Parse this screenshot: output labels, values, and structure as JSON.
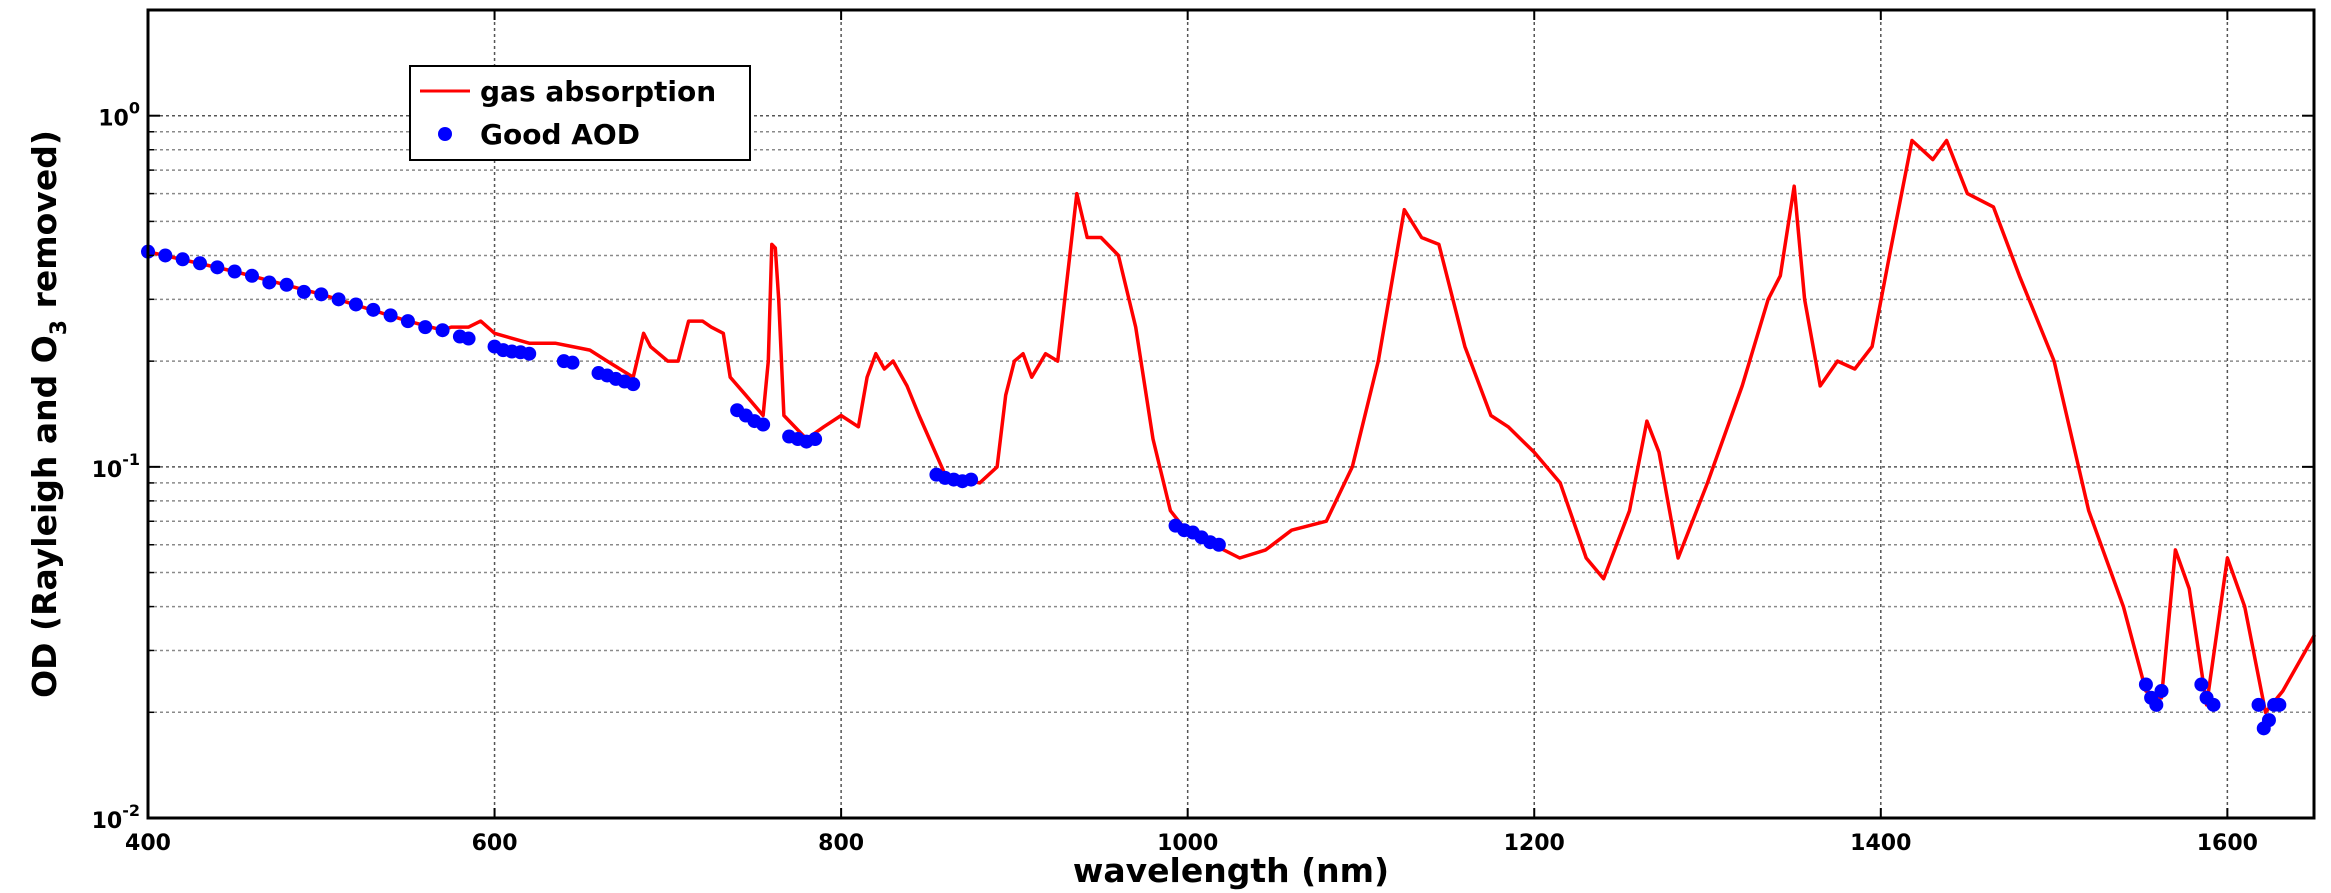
{
  "chart_data": {
    "type": "line",
    "title": "",
    "xlabel": "wavelength (nm)",
    "ylabel_parts": [
      "OD (Rayleigh and O",
      "3",
      " removed)"
    ],
    "xlim": [
      400,
      1650
    ],
    "ylim": [
      0.01,
      2
    ],
    "y_scale": "log",
    "grid": "y-major-and-minor dotted",
    "x_ticks": [
      400,
      600,
      800,
      1000,
      1200,
      1400,
      1600
    ],
    "x_tick_labels": [
      "400",
      "600",
      "800",
      "1000",
      "1200",
      "1400",
      "1600"
    ],
    "y_ticks": [
      {
        "value": 0.01,
        "base": "10",
        "exp": "-2"
      },
      {
        "value": 0.1,
        "base": "10",
        "exp": "-1"
      },
      {
        "value": 1,
        "base": "10",
        "exp": "0"
      }
    ],
    "legend": {
      "placement": "top-left",
      "entries": [
        {
          "label": "gas absorption",
          "marker": "line",
          "color": "#ff0000"
        },
        {
          "label": "Good AOD",
          "marker": "dot",
          "color": "#0000ff"
        }
      ]
    },
    "series": [
      {
        "name": "gas absorption",
        "color": "#ff0000",
        "style": "line",
        "points": [
          [
            400,
            0.41
          ],
          [
            450,
            0.36
          ],
          [
            500,
            0.31
          ],
          [
            550,
            0.26
          ],
          [
            570,
            0.245
          ],
          [
            575,
            0.25
          ],
          [
            585,
            0.25
          ],
          [
            592,
            0.26
          ],
          [
            600,
            0.24
          ],
          [
            620,
            0.225
          ],
          [
            635,
            0.225
          ],
          [
            645,
            0.22
          ],
          [
            655,
            0.215
          ],
          [
            665,
            0.2
          ],
          [
            680,
            0.18
          ],
          [
            686,
            0.24
          ],
          [
            690,
            0.22
          ],
          [
            700,
            0.2
          ],
          [
            706,
            0.2
          ],
          [
            712,
            0.26
          ],
          [
            720,
            0.26
          ],
          [
            725,
            0.25
          ],
          [
            732,
            0.24
          ],
          [
            736,
            0.18
          ],
          [
            745,
            0.16
          ],
          [
            755,
            0.14
          ],
          [
            758,
            0.2
          ],
          [
            760,
            0.43
          ],
          [
            762,
            0.42
          ],
          [
            764,
            0.3
          ],
          [
            767,
            0.14
          ],
          [
            780,
            0.12
          ],
          [
            790,
            0.13
          ],
          [
            800,
            0.14
          ],
          [
            810,
            0.13
          ],
          [
            815,
            0.18
          ],
          [
            820,
            0.21
          ],
          [
            825,
            0.19
          ],
          [
            830,
            0.2
          ],
          [
            838,
            0.17
          ],
          [
            845,
            0.14
          ],
          [
            860,
            0.095
          ],
          [
            880,
            0.09
          ],
          [
            890,
            0.1
          ],
          [
            895,
            0.16
          ],
          [
            900,
            0.2
          ],
          [
            905,
            0.21
          ],
          [
            910,
            0.18
          ],
          [
            918,
            0.21
          ],
          [
            925,
            0.2
          ],
          [
            932,
            0.4
          ],
          [
            936,
            0.6
          ],
          [
            942,
            0.45
          ],
          [
            950,
            0.45
          ],
          [
            960,
            0.4
          ],
          [
            970,
            0.25
          ],
          [
            980,
            0.12
          ],
          [
            990,
            0.075
          ],
          [
            1000,
            0.065
          ],
          [
            1015,
            0.06
          ],
          [
            1030,
            0.055
          ],
          [
            1045,
            0.058
          ],
          [
            1060,
            0.066
          ],
          [
            1080,
            0.07
          ],
          [
            1095,
            0.1
          ],
          [
            1110,
            0.2
          ],
          [
            1125,
            0.54
          ],
          [
            1135,
            0.45
          ],
          [
            1145,
            0.43
          ],
          [
            1160,
            0.22
          ],
          [
            1175,
            0.14
          ],
          [
            1185,
            0.13
          ],
          [
            1200,
            0.11
          ],
          [
            1215,
            0.09
          ],
          [
            1230,
            0.055
          ],
          [
            1240,
            0.048
          ],
          [
            1255,
            0.075
          ],
          [
            1265,
            0.135
          ],
          [
            1272,
            0.11
          ],
          [
            1283,
            0.055
          ],
          [
            1300,
            0.09
          ],
          [
            1320,
            0.17
          ],
          [
            1335,
            0.3
          ],
          [
            1342,
            0.35
          ],
          [
            1350,
            0.63
          ],
          [
            1356,
            0.3
          ],
          [
            1365,
            0.17
          ],
          [
            1375,
            0.2
          ],
          [
            1385,
            0.19
          ],
          [
            1395,
            0.22
          ],
          [
            1405,
            0.4
          ],
          [
            1418,
            0.85
          ],
          [
            1430,
            0.75
          ],
          [
            1438,
            0.85
          ],
          [
            1450,
            0.6
          ],
          [
            1465,
            0.55
          ],
          [
            1480,
            0.35
          ],
          [
            1500,
            0.2
          ],
          [
            1520,
            0.075
          ],
          [
            1540,
            0.04
          ],
          [
            1553,
            0.023
          ],
          [
            1562,
            0.022
          ],
          [
            1570,
            0.058
          ],
          [
            1578,
            0.045
          ],
          [
            1588,
            0.021
          ],
          [
            1600,
            0.055
          ],
          [
            1610,
            0.04
          ],
          [
            1622,
            0.02
          ],
          [
            1632,
            0.023
          ],
          [
            1650,
            0.033
          ]
        ]
      },
      {
        "name": "Good AOD",
        "color": "#0000ff",
        "style": "dots",
        "points": [
          [
            400,
            0.41
          ],
          [
            410,
            0.4
          ],
          [
            420,
            0.39
          ],
          [
            430,
            0.38
          ],
          [
            440,
            0.37
          ],
          [
            450,
            0.36
          ],
          [
            460,
            0.35
          ],
          [
            470,
            0.335
          ],
          [
            480,
            0.33
          ],
          [
            490,
            0.315
          ],
          [
            500,
            0.31
          ],
          [
            510,
            0.3
          ],
          [
            520,
            0.29
          ],
          [
            530,
            0.28
          ],
          [
            540,
            0.27
          ],
          [
            550,
            0.26
          ],
          [
            560,
            0.25
          ],
          [
            570,
            0.245
          ],
          [
            580,
            0.235
          ],
          [
            585,
            0.232
          ],
          [
            600,
            0.22
          ],
          [
            605,
            0.215
          ],
          [
            610,
            0.213
          ],
          [
            615,
            0.212
          ],
          [
            620,
            0.21
          ],
          [
            640,
            0.2
          ],
          [
            645,
            0.198
          ],
          [
            660,
            0.185
          ],
          [
            665,
            0.182
          ],
          [
            670,
            0.178
          ],
          [
            675,
            0.175
          ],
          [
            680,
            0.172
          ],
          [
            740,
            0.145
          ],
          [
            745,
            0.14
          ],
          [
            750,
            0.135
          ],
          [
            755,
            0.132
          ],
          [
            770,
            0.122
          ],
          [
            775,
            0.12
          ],
          [
            780,
            0.118
          ],
          [
            785,
            0.12
          ],
          [
            855,
            0.095
          ],
          [
            860,
            0.093
          ],
          [
            865,
            0.092
          ],
          [
            870,
            0.091
          ],
          [
            875,
            0.092
          ],
          [
            993,
            0.068
          ],
          [
            998,
            0.066
          ],
          [
            1003,
            0.065
          ],
          [
            1008,
            0.063
          ],
          [
            1013,
            0.061
          ],
          [
            1018,
            0.06
          ],
          [
            1553,
            0.024
          ],
          [
            1556,
            0.022
          ],
          [
            1559,
            0.021
          ],
          [
            1562,
            0.023
          ],
          [
            1585,
            0.024
          ],
          [
            1588,
            0.022
          ],
          [
            1592,
            0.021
          ],
          [
            1618,
            0.021
          ],
          [
            1621,
            0.018
          ],
          [
            1624,
            0.019
          ],
          [
            1627,
            0.021
          ],
          [
            1630,
            0.021
          ]
        ]
      }
    ]
  }
}
